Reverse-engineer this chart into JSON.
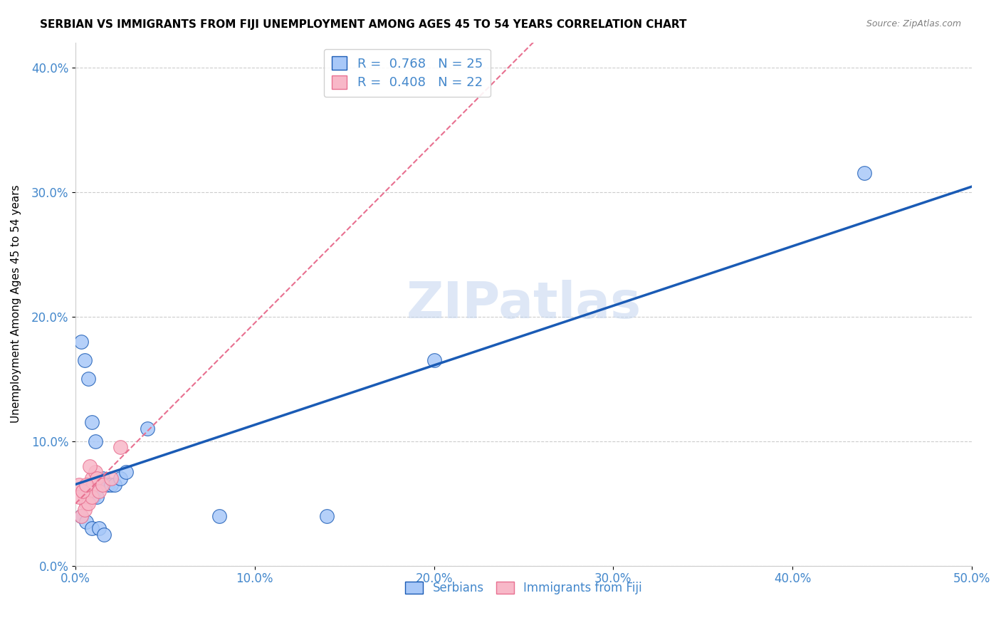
{
  "title": "SERBIAN VS IMMIGRANTS FROM FIJI UNEMPLOYMENT AMONG AGES 45 TO 54 YEARS CORRELATION CHART",
  "source": "Source: ZipAtlas.com",
  "xlabel_ticks": [
    "0.0%",
    "10.0%",
    "20.0%",
    "30.0%",
    "40.0%",
    "50.0%"
  ],
  "ylabel_ticks": [
    "0.0%",
    "10.0%",
    "20.0%",
    "30.0%",
    "40.0%"
  ],
  "ylabel": "Unemployment Among Ages 45 to 54 years",
  "xlim": [
    0.0,
    0.5
  ],
  "ylim": [
    0.0,
    0.42
  ],
  "serbian_x": [
    0.005,
    0.008,
    0.01,
    0.012,
    0.015,
    0.018,
    0.02,
    0.022,
    0.025,
    0.028,
    0.003,
    0.006,
    0.009,
    0.013,
    0.016,
    0.003,
    0.005,
    0.007,
    0.009,
    0.011,
    0.08,
    0.14,
    0.04,
    0.2,
    0.44
  ],
  "serbian_y": [
    0.06,
    0.06,
    0.055,
    0.055,
    0.07,
    0.065,
    0.065,
    0.065,
    0.07,
    0.075,
    0.04,
    0.035,
    0.03,
    0.03,
    0.025,
    0.18,
    0.165,
    0.15,
    0.115,
    0.1,
    0.04,
    0.04,
    0.11,
    0.165,
    0.315
  ],
  "fiji_x": [
    0.002,
    0.004,
    0.005,
    0.006,
    0.007,
    0.008,
    0.009,
    0.01,
    0.011,
    0.012,
    0.003,
    0.005,
    0.007,
    0.009,
    0.013,
    0.015,
    0.002,
    0.004,
    0.006,
    0.008,
    0.025,
    0.02
  ],
  "fiji_y": [
    0.065,
    0.06,
    0.055,
    0.05,
    0.06,
    0.065,
    0.07,
    0.065,
    0.075,
    0.07,
    0.04,
    0.045,
    0.05,
    0.055,
    0.06,
    0.065,
    0.055,
    0.06,
    0.065,
    0.08,
    0.095,
    0.07
  ],
  "serbian_R": 0.768,
  "serbian_N": 25,
  "fiji_R": 0.408,
  "fiji_N": 22,
  "serbian_color": "#a8c8f8",
  "fiji_color": "#f8b8c8",
  "serbian_line_color": "#1a5bb5",
  "fiji_line_color": "#e87090",
  "title_fontsize": 11,
  "source_fontsize": 9,
  "axis_label_color": "#4488cc",
  "tick_label_color": "#4488cc",
  "legend_R_color": "#4488cc",
  "grid_color": "#cccccc",
  "watermark_text": "ZIPatlas",
  "watermark_color": "#c8d8f0"
}
